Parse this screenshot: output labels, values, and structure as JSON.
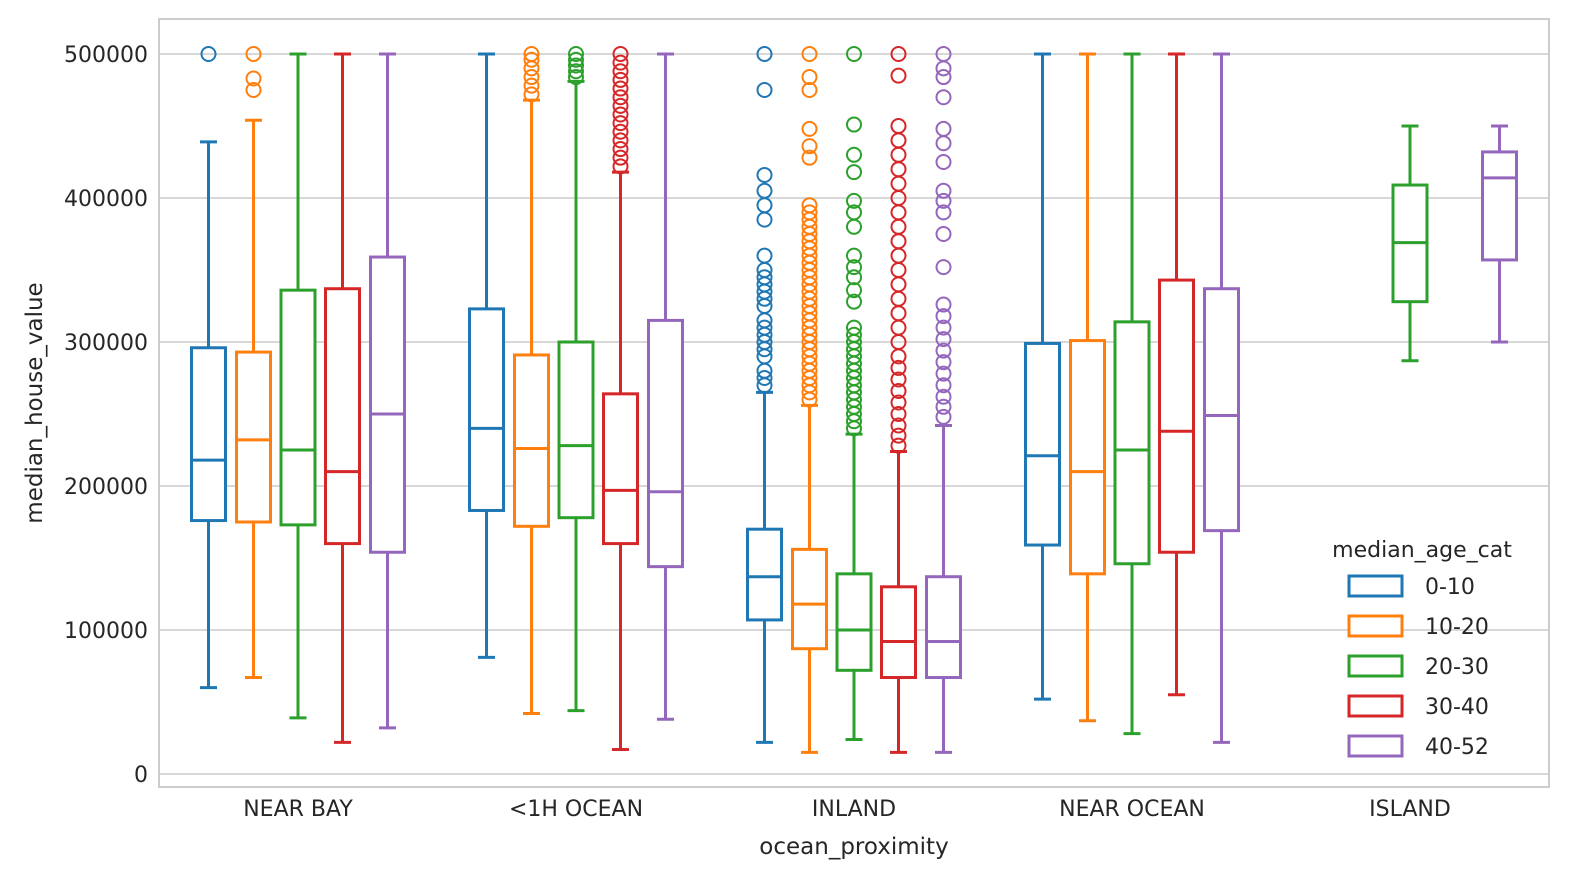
{
  "chart_data": {
    "type": "boxplot",
    "title": "",
    "xlabel": "ocean_proximity",
    "ylabel": "median_house_value",
    "ylim": [
      -9000,
      524000
    ],
    "yticks": [
      0,
      100000,
      200000,
      300000,
      400000,
      500000
    ],
    "ytick_labels": [
      "0",
      "100000",
      "200000",
      "300000",
      "400000",
      "500000"
    ],
    "grid": "horizontal",
    "legend_placement": "lower-right",
    "legend_title": "median_age_cat",
    "categories": [
      "NEAR BAY",
      "<1H OCEAN",
      "INLAND",
      "NEAR OCEAN",
      "ISLAND"
    ],
    "series": [
      {
        "name": "0-10",
        "color": "#1f77b4",
        "boxes": [
          {
            "whislo": 60000,
            "q1": 176000,
            "med": 218000,
            "q3": 296000,
            "whishi": 439000,
            "fliers": [
              500000
            ]
          },
          {
            "whislo": 81000,
            "q1": 183000,
            "med": 240000,
            "q3": 323000,
            "whishi": 500000,
            "fliers": []
          },
          {
            "whislo": 22000,
            "q1": 107000,
            "med": 137000,
            "q3": 170000,
            "whishi": 265000,
            "fliers": [
              270000,
              275000,
              280000,
              290000,
              295000,
              300000,
              305000,
              310000,
              315000,
              325000,
              330000,
              335000,
              340000,
              345000,
              350000,
              360000,
              385000,
              395000,
              405000,
              416000,
              475000,
              500000
            ]
          },
          {
            "whislo": 52000,
            "q1": 159000,
            "med": 221000,
            "q3": 299000,
            "whishi": 500000,
            "fliers": []
          },
          null
        ]
      },
      {
        "name": "10-20",
        "color": "#ff7f0e",
        "boxes": [
          {
            "whislo": 67000,
            "q1": 175000,
            "med": 232000,
            "q3": 293000,
            "whishi": 454000,
            "fliers": [
              475000,
              483000,
              500000
            ]
          },
          {
            "whislo": 42000,
            "q1": 172000,
            "med": 226000,
            "q3": 291000,
            "whishi": 468000,
            "fliers": [
              472000,
              478000,
              484000,
              490000,
              496000,
              500000
            ]
          },
          {
            "whislo": 15000,
            "q1": 87000,
            "med": 118000,
            "q3": 156000,
            "whishi": 256000,
            "fliers": [
              260000,
              265000,
              270000,
              275000,
              280000,
              285000,
              290000,
              295000,
              300000,
              305000,
              310000,
              315000,
              320000,
              325000,
              330000,
              335000,
              340000,
              345000,
              350000,
              355000,
              360000,
              365000,
              370000,
              375000,
              380000,
              385000,
              390000,
              395000,
              428000,
              436000,
              448000,
              475000,
              484000,
              500000
            ]
          },
          {
            "whislo": 37000,
            "q1": 139000,
            "med": 210000,
            "q3": 301000,
            "whishi": 500000,
            "fliers": []
          },
          null
        ]
      },
      {
        "name": "20-30",
        "color": "#2ca02c",
        "boxes": [
          {
            "whislo": 39000,
            "q1": 173000,
            "med": 225000,
            "q3": 336000,
            "whishi": 500000,
            "fliers": []
          },
          {
            "whislo": 44000,
            "q1": 178000,
            "med": 228000,
            "q3": 300000,
            "whishi": 481000,
            "fliers": [
              484000,
              488000,
              492000,
              496000,
              500000
            ]
          },
          {
            "whislo": 24000,
            "q1": 72000,
            "med": 100000,
            "q3": 139000,
            "whishi": 236000,
            "fliers": [
              240000,
              245000,
              250000,
              255000,
              260000,
              265000,
              270000,
              275000,
              280000,
              285000,
              290000,
              295000,
              300000,
              305000,
              310000,
              328000,
              336000,
              345000,
              352000,
              360000,
              380000,
              390000,
              398000,
              418000,
              430000,
              451000,
              500000
            ]
          },
          {
            "whislo": 28000,
            "q1": 146000,
            "med": 225000,
            "q3": 314000,
            "whishi": 500000,
            "fliers": []
          },
          {
            "whislo": 287000,
            "q1": 328000,
            "med": 369000,
            "q3": 409000,
            "whishi": 450000,
            "fliers": []
          }
        ]
      },
      {
        "name": "30-40",
        "color": "#d62728",
        "boxes": [
          {
            "whislo": 22000,
            "q1": 160000,
            "med": 210000,
            "q3": 337000,
            "whishi": 500000,
            "fliers": []
          },
          {
            "whislo": 17000,
            "q1": 160000,
            "med": 197000,
            "q3": 264000,
            "whishi": 418000,
            "fliers": [
              422000,
              428000,
              434000,
              440000,
              446000,
              452000,
              458000,
              464000,
              470000,
              476000,
              482000,
              488000,
              494000,
              500000
            ]
          },
          {
            "whislo": 15000,
            "q1": 67000,
            "med": 92000,
            "q3": 130000,
            "whishi": 224000,
            "fliers": [
              228000,
              235000,
              242000,
              250000,
              258000,
              266000,
              274000,
              282000,
              290000,
              300000,
              310000,
              320000,
              330000,
              340000,
              350000,
              360000,
              370000,
              380000,
              390000,
              400000,
              410000,
              420000,
              430000,
              440000,
              450000,
              485000,
              500000
            ]
          },
          {
            "whislo": 55000,
            "q1": 154000,
            "med": 238000,
            "q3": 343000,
            "whishi": 500000,
            "fliers": []
          },
          null
        ]
      },
      {
        "name": "40-52",
        "color": "#9467bd",
        "boxes": [
          {
            "whislo": 32000,
            "q1": 154000,
            "med": 250000,
            "q3": 359000,
            "whishi": 500000,
            "fliers": []
          },
          {
            "whislo": 38000,
            "q1": 144000,
            "med": 196000,
            "q3": 315000,
            "whishi": 500000,
            "fliers": []
          },
          {
            "whislo": 15000,
            "q1": 67000,
            "med": 92000,
            "q3": 137000,
            "whishi": 242000,
            "fliers": [
              248000,
              255000,
              262000,
              270000,
              278000,
              286000,
              294000,
              302000,
              310000,
              318000,
              326000,
              352000,
              375000,
              390000,
              398000,
              405000,
              425000,
              438000,
              448000,
              470000,
              484000,
              490000,
              500000
            ]
          },
          {
            "whislo": 22000,
            "q1": 169000,
            "med": 249000,
            "q3": 337000,
            "whishi": 500000,
            "fliers": []
          },
          {
            "whislo": 300000,
            "q1": 357000,
            "med": 414000,
            "q3": 432000,
            "whishi": 450000,
            "fliers": []
          }
        ]
      }
    ]
  }
}
